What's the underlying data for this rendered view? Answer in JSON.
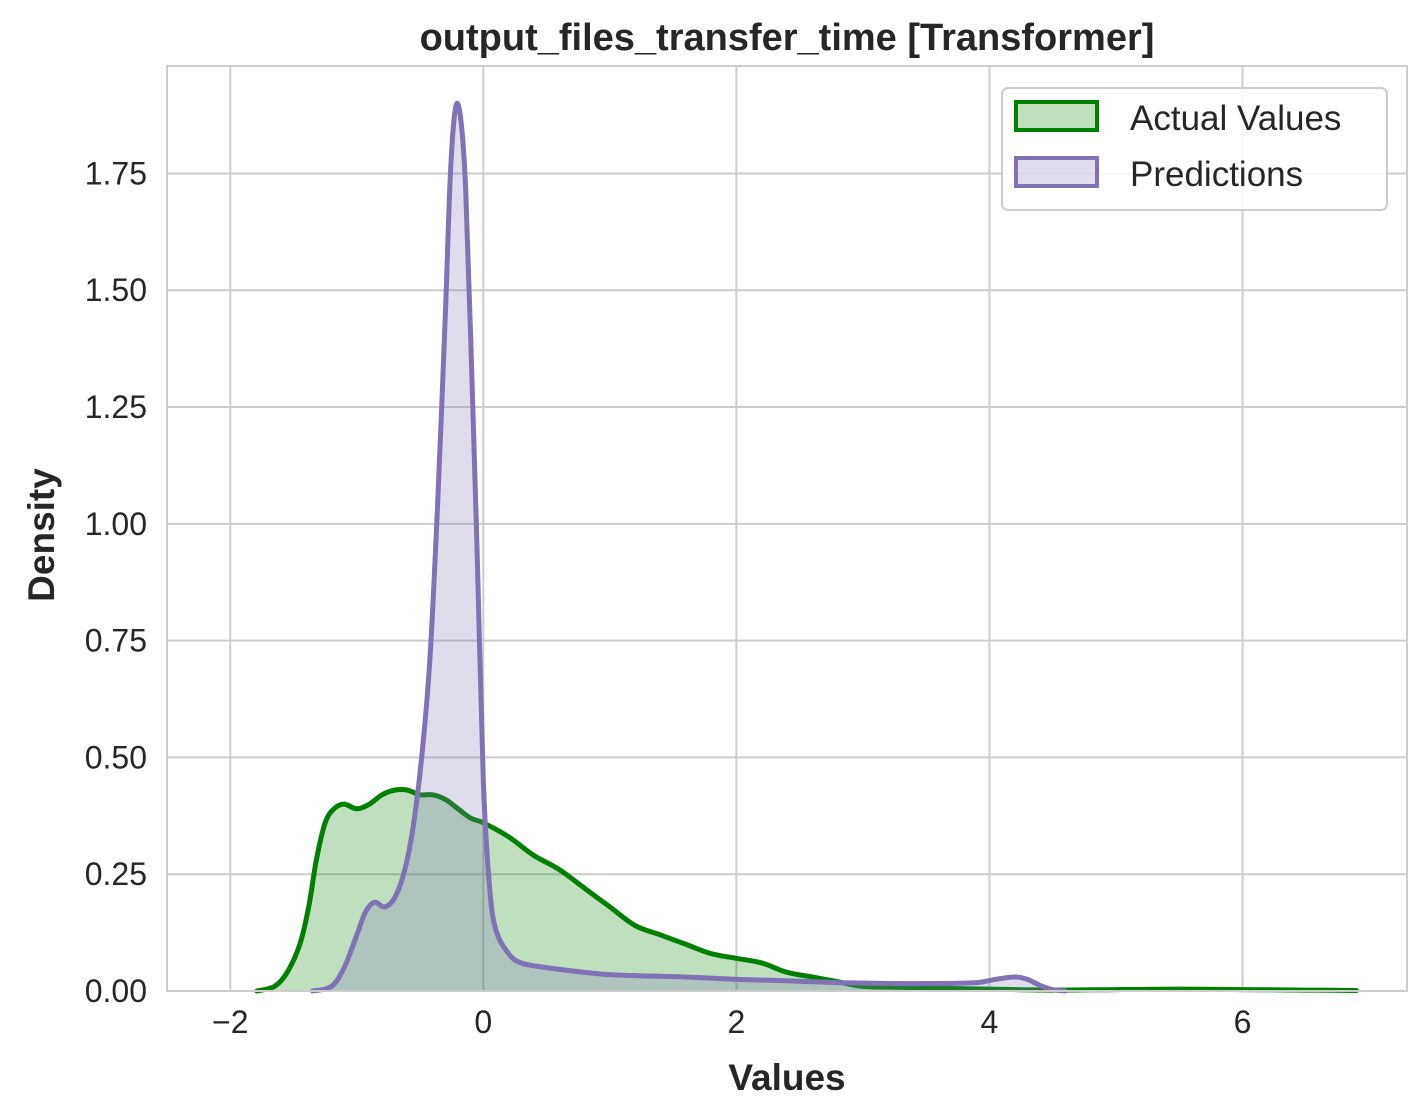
{
  "chart_data": {
    "type": "area",
    "title": "output_files_transfer_time [Transformer]",
    "xlabel": "Values",
    "ylabel": "Density",
    "xlim": [
      -2.5,
      7.3
    ],
    "ylim": [
      0,
      1.98
    ],
    "grid": true,
    "legend_position": "top-right",
    "xticks": [
      -2,
      0,
      2,
      4,
      6
    ],
    "xtick_labels": [
      "−2",
      "0",
      "2",
      "4",
      "6"
    ],
    "yticks": [
      0,
      0.25,
      0.5,
      0.75,
      1.0,
      1.25,
      1.5,
      1.75
    ],
    "ytick_labels": [
      "0.00",
      "0.25",
      "0.50",
      "0.75",
      "1.00",
      "1.25",
      "1.50",
      "1.75"
    ],
    "series": [
      {
        "name": "Actual Values",
        "line_color": "#008000",
        "fill_color": "#008000",
        "fill_opacity": 0.25,
        "points": [
          [
            -1.79,
            0.0
          ],
          [
            -1.65,
            0.01
          ],
          [
            -1.55,
            0.04
          ],
          [
            -1.45,
            0.1
          ],
          [
            -1.38,
            0.18
          ],
          [
            -1.32,
            0.28
          ],
          [
            -1.25,
            0.36
          ],
          [
            -1.18,
            0.39
          ],
          [
            -1.1,
            0.4
          ],
          [
            -1.0,
            0.39
          ],
          [
            -0.9,
            0.4
          ],
          [
            -0.8,
            0.42
          ],
          [
            -0.7,
            0.43
          ],
          [
            -0.6,
            0.43
          ],
          [
            -0.5,
            0.42
          ],
          [
            -0.4,
            0.42
          ],
          [
            -0.3,
            0.41
          ],
          [
            -0.2,
            0.39
          ],
          [
            -0.1,
            0.37
          ],
          [
            0.0,
            0.36
          ],
          [
            0.2,
            0.33
          ],
          [
            0.4,
            0.29
          ],
          [
            0.6,
            0.26
          ],
          [
            0.8,
            0.22
          ],
          [
            1.0,
            0.18
          ],
          [
            1.2,
            0.14
          ],
          [
            1.4,
            0.12
          ],
          [
            1.6,
            0.1
          ],
          [
            1.8,
            0.08
          ],
          [
            2.0,
            0.07
          ],
          [
            2.2,
            0.06
          ],
          [
            2.4,
            0.04
          ],
          [
            2.6,
            0.03
          ],
          [
            2.8,
            0.02
          ],
          [
            3.0,
            0.01
          ],
          [
            3.3,
            0.008
          ],
          [
            3.6,
            0.006
          ],
          [
            4.0,
            0.004
          ],
          [
            4.5,
            0.002
          ],
          [
            5.0,
            0.003
          ],
          [
            5.5,
            0.004
          ],
          [
            6.0,
            0.003
          ],
          [
            6.5,
            0.002
          ],
          [
            6.9,
            0.001
          ]
        ]
      },
      {
        "name": "Predictions",
        "line_color": "#8172b3",
        "fill_color": "#8172b3",
        "fill_opacity": 0.25,
        "points": [
          [
            -1.35,
            0.0
          ],
          [
            -1.2,
            0.01
          ],
          [
            -1.1,
            0.05
          ],
          [
            -1.0,
            0.12
          ],
          [
            -0.93,
            0.17
          ],
          [
            -0.86,
            0.19
          ],
          [
            -0.78,
            0.18
          ],
          [
            -0.7,
            0.2
          ],
          [
            -0.62,
            0.26
          ],
          [
            -0.55,
            0.36
          ],
          [
            -0.48,
            0.52
          ],
          [
            -0.42,
            0.72
          ],
          [
            -0.36,
            1.05
          ],
          [
            -0.3,
            1.45
          ],
          [
            -0.26,
            1.75
          ],
          [
            -0.22,
            1.89
          ],
          [
            -0.18,
            1.87
          ],
          [
            -0.14,
            1.72
          ],
          [
            -0.1,
            1.4
          ],
          [
            -0.05,
            0.95
          ],
          [
            0.0,
            0.45
          ],
          [
            0.05,
            0.22
          ],
          [
            0.1,
            0.13
          ],
          [
            0.2,
            0.08
          ],
          [
            0.3,
            0.06
          ],
          [
            0.5,
            0.05
          ],
          [
            0.8,
            0.04
          ],
          [
            1.0,
            0.035
          ],
          [
            1.3,
            0.032
          ],
          [
            1.6,
            0.03
          ],
          [
            2.0,
            0.025
          ],
          [
            2.4,
            0.022
          ],
          [
            2.8,
            0.018
          ],
          [
            3.2,
            0.016
          ],
          [
            3.6,
            0.016
          ],
          [
            3.9,
            0.018
          ],
          [
            4.05,
            0.025
          ],
          [
            4.2,
            0.03
          ],
          [
            4.3,
            0.025
          ],
          [
            4.4,
            0.012
          ],
          [
            4.5,
            0.003
          ],
          [
            4.6,
            0.0
          ]
        ]
      }
    ]
  }
}
